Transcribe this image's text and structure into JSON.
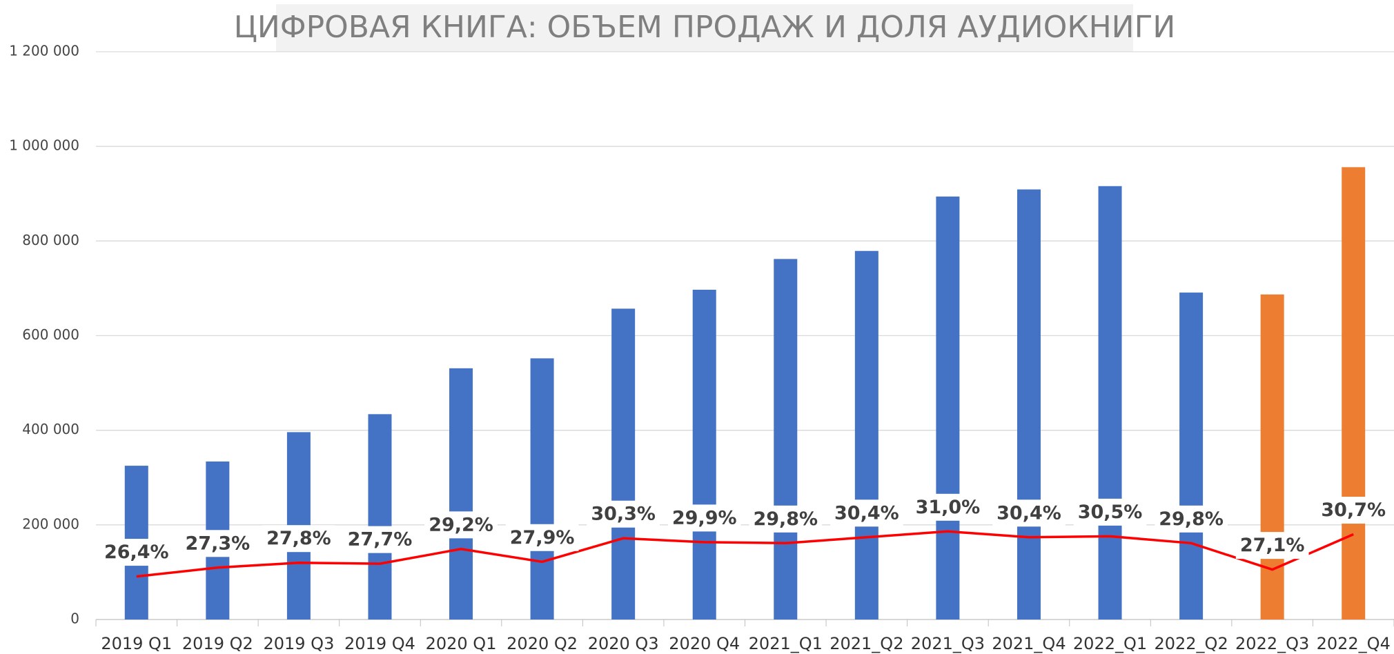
{
  "chart_data": {
    "type": "bar_line",
    "title": "ЦИФРОВАЯ КНИГА: ОБЪЕМ ПРОДАЖ И ДОЛЯ АУДИОКНИГИ",
    "categories": [
      "2019 Q1",
      "2019 Q2",
      "2019 Q3",
      "2019 Q4",
      "2020 Q1",
      "2020 Q2",
      "2020 Q3",
      "2020 Q4",
      "2021_Q1",
      "2021_Q2",
      "2021_Q3",
      "2021_Q4",
      "2022_Q1",
      "2022_Q2",
      "2022_Q3",
      "2022_Q4"
    ],
    "series": [
      {
        "values": [
          325000,
          334000,
          396000,
          434000,
          531000,
          552000,
          657000,
          697000,
          762000,
          779000,
          894000,
          909000,
          916000,
          691000,
          687000,
          956000
        ],
        "colors": [
          "#4472c4",
          "#4472c4",
          "#4472c4",
          "#4472c4",
          "#4472c4",
          "#4472c4",
          "#4472c4",
          "#4472c4",
          "#4472c4",
          "#4472c4",
          "#4472c4",
          "#4472c4",
          "#4472c4",
          "#4472c4",
          "#ed7d31",
          "#ed7d31"
        ]
      },
      {
        "axis": "y2",
        "color": "#ff0000",
        "values": [
          26.4,
          27.3,
          27.8,
          27.7,
          29.2,
          27.9,
          30.3,
          29.9,
          29.8,
          30.4,
          31.0,
          30.4,
          30.5,
          29.8,
          27.1,
          30.7
        ],
        "value_labels": [
          "26,4%",
          "27,3%",
          "27,8%",
          "27,7%",
          "29,2%",
          "27,9%",
          "30,3%",
          "29,9%",
          "29,8%",
          "30,4%",
          "31,0%",
          "30,4%",
          "30,5%",
          "29,8%",
          "27,1%",
          "30,7%"
        ]
      }
    ],
    "ylim": [
      0,
      1200000
    ],
    "yticks": [
      0,
      {
        "value": 200000,
        "label": "200 000"
      },
      {
        "value": 400000,
        "label": "400 000"
      },
      {
        "value": 600000,
        "label": "600 000"
      },
      {
        "value": 800000,
        "label": "800 000"
      },
      {
        "value": 1000000,
        "label": "1 000 000"
      },
      {
        "value": 1200000,
        "label": "1 200 000"
      }
    ],
    "y2lim": [
      22,
      80
    ],
    "grid": true
  }
}
